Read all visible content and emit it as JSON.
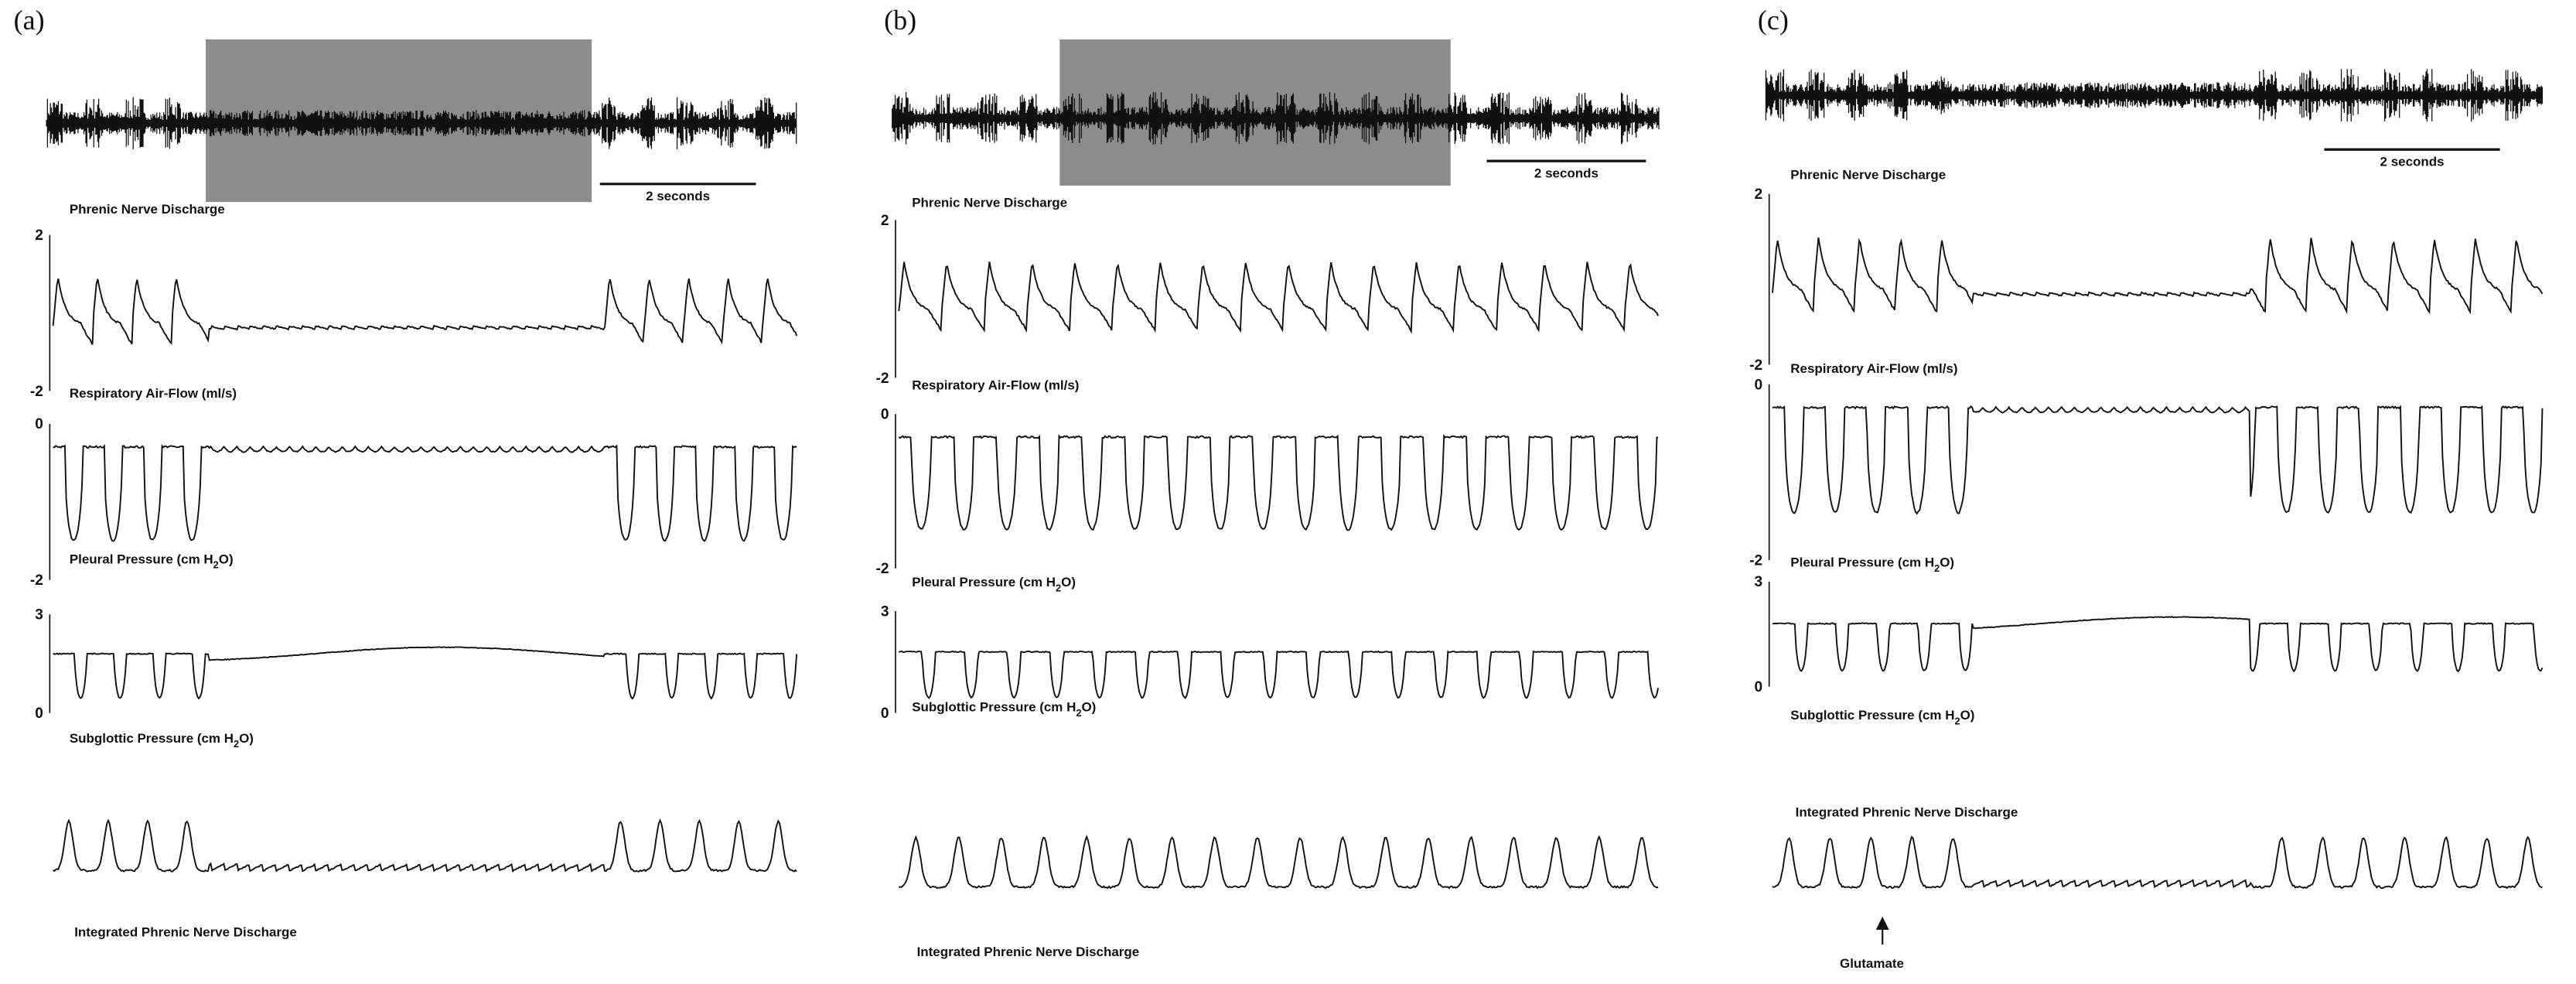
{
  "panels": [
    {
      "label": "(a)",
      "scale": "2 seconds",
      "phrenic": "Phrenic Nerve Discharge",
      "airflow": {
        "name": "Respiratory Air-Flow (ml/s)",
        "max": "2",
        "min": "-2"
      },
      "pleural": {
        "name": [
          "Pleural Pressure (cm H",
          "2",
          "O)"
        ],
        "max": "0",
        "min": "-2"
      },
      "subglottic": {
        "name": [
          "Subglottic Pressure (cm H",
          "2",
          "O)"
        ],
        "max": "3",
        "min": "0"
      },
      "integrated": "Integrated Phrenic Nerve Discharge"
    },
    {
      "label": "(b)",
      "scale": "2 seconds",
      "phrenic": "Phrenic Nerve Discharge",
      "airflow": {
        "name": "Respiratory Air-Flow (ml/s)",
        "max": "2",
        "min": "-2"
      },
      "pleural": {
        "name": [
          "Pleural Pressure (cm H",
          "2",
          "O)"
        ],
        "max": "0",
        "min": "-2"
      },
      "subglottic": {
        "name": [
          "Subglottic Pressure (cm H",
          "2",
          "O)"
        ],
        "max": "3",
        "min": "0"
      },
      "integrated": "Integrated Phrenic Nerve Discharge"
    },
    {
      "label": "(c)",
      "scale": "2 seconds",
      "phrenic": "Phrenic Nerve Discharge",
      "airflow": {
        "name": "Respiratory Air-Flow (ml/s)",
        "max": "2",
        "min": "-2"
      },
      "pleural": {
        "name": [
          "Pleural Pressure (cm H",
          "2",
          "O)"
        ],
        "max": "0",
        "min": "-2"
      },
      "subglottic": {
        "name": [
          "Subglottic Pressure (cm H",
          "2",
          "O)"
        ],
        "max": "3",
        "min": "0"
      },
      "integrated": "Integrated Phrenic Nerve Discharge",
      "annotation": "Glutamate"
    }
  ]
}
